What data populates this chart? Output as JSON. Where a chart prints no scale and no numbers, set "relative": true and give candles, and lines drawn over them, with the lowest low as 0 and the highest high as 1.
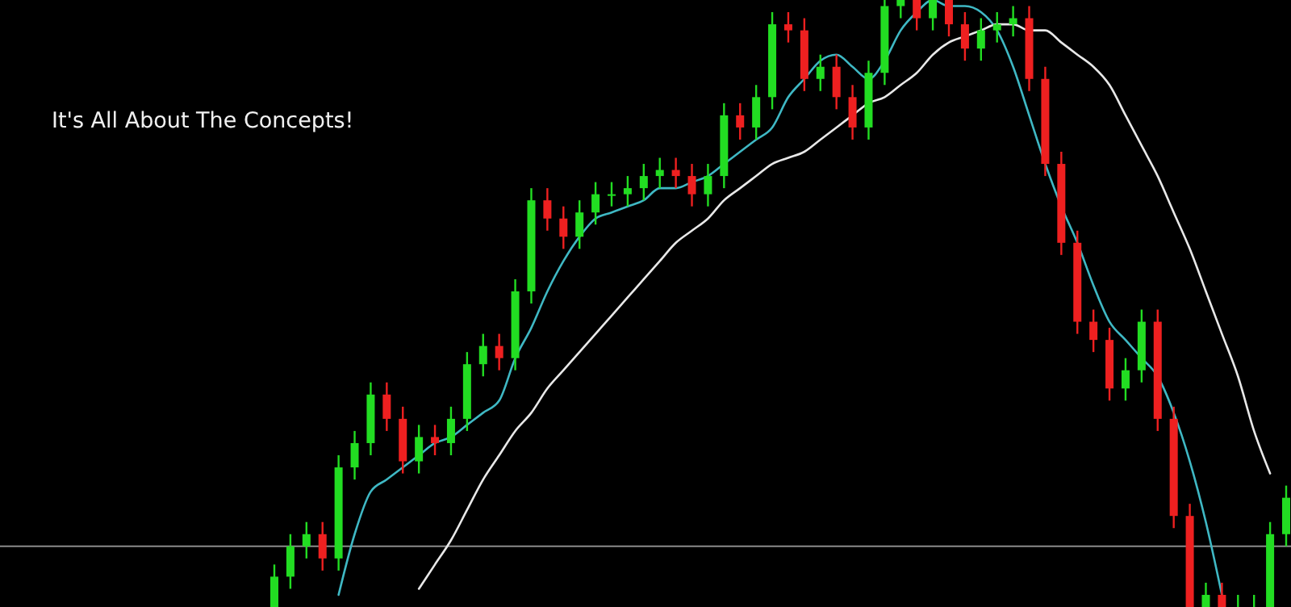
{
  "chart_data": {
    "type": "candlestick",
    "relative": true,
    "annotations": [
      "It's All About The Concepts!"
    ],
    "categories": [
      null,
      null,
      null,
      null,
      null,
      null,
      null,
      null,
      null,
      null,
      null,
      null,
      null,
      null,
      null,
      null,
      null,
      null,
      null,
      null,
      null,
      null,
      null,
      null,
      null,
      null,
      null,
      null,
      null,
      null,
      null,
      null,
      null,
      null,
      null,
      null,
      null,
      null,
      null,
      null,
      null,
      null,
      null,
      null,
      null,
      null,
      null,
      null,
      null,
      null,
      null,
      null,
      null,
      null,
      null,
      null,
      null,
      null,
      null,
      null,
      null,
      null,
      null,
      null
    ],
    "ohlc": [
      [
        0,
        0.07,
        0,
        0.05
      ],
      [
        0.05,
        0.12,
        0.03,
        0.1
      ],
      [
        0.1,
        0.14,
        0.08,
        0.12
      ],
      [
        0.12,
        0.14,
        0.06,
        0.08
      ],
      [
        0.08,
        0.25,
        0.06,
        0.23
      ],
      [
        0.23,
        0.29,
        0.21,
        0.27
      ],
      [
        0.27,
        0.37,
        0.25,
        0.35
      ],
      [
        0.35,
        0.37,
        0.29,
        0.31
      ],
      [
        0.31,
        0.33,
        0.22,
        0.24
      ],
      [
        0.24,
        0.3,
        0.22,
        0.28
      ],
      [
        0.28,
        0.3,
        0.25,
        0.27
      ],
      [
        0.27,
        0.33,
        0.25,
        0.31
      ],
      [
        0.31,
        0.42,
        0.29,
        0.4
      ],
      [
        0.4,
        0.45,
        0.38,
        0.43
      ],
      [
        0.43,
        0.45,
        0.39,
        0.41
      ],
      [
        0.41,
        0.54,
        0.39,
        0.52
      ],
      [
        0.52,
        0.69,
        0.5,
        0.67
      ],
      [
        0.67,
        0.69,
        0.62,
        0.64
      ],
      [
        0.64,
        0.66,
        0.59,
        0.61
      ],
      [
        0.61,
        0.67,
        0.59,
        0.65
      ],
      [
        0.65,
        0.7,
        0.63,
        0.68
      ],
      [
        0.68,
        0.7,
        0.66,
        0.68
      ],
      [
        0.68,
        0.71,
        0.66,
        0.69
      ],
      [
        0.69,
        0.73,
        0.67,
        0.71
      ],
      [
        0.71,
        0.74,
        0.69,
        0.72
      ],
      [
        0.72,
        0.74,
        0.69,
        0.71
      ],
      [
        0.71,
        0.73,
        0.66,
        0.68
      ],
      [
        0.68,
        0.73,
        0.66,
        0.71
      ],
      [
        0.71,
        0.83,
        0.69,
        0.81
      ],
      [
        0.81,
        0.83,
        0.77,
        0.79
      ],
      [
        0.79,
        0.86,
        0.77,
        0.84
      ],
      [
        0.84,
        0.98,
        0.82,
        0.96
      ],
      [
        0.96,
        0.98,
        0.93,
        0.95
      ],
      [
        0.95,
        0.97,
        0.85,
        0.87
      ],
      [
        0.87,
        0.91,
        0.85,
        0.89
      ],
      [
        0.89,
        0.91,
        0.82,
        0.84
      ],
      [
        0.84,
        0.86,
        0.77,
        0.79
      ],
      [
        0.79,
        0.9,
        0.77,
        0.88
      ],
      [
        0.88,
        1,
        0.86,
        0.99
      ],
      [
        0.99,
        1,
        0.97,
        1
      ],
      [
        1,
        1,
        0.95,
        0.97
      ],
      [
        0.97,
        1,
        0.95,
        1
      ],
      [
        1,
        1,
        0.94,
        0.96
      ],
      [
        0.96,
        0.98,
        0.9,
        0.92
      ],
      [
        0.92,
        0.97,
        0.9,
        0.95
      ],
      [
        0.95,
        0.98,
        0.93,
        0.96
      ],
      [
        0.96,
        0.99,
        0.94,
        0.97
      ],
      [
        0.97,
        0.99,
        0.85,
        0.87
      ],
      [
        0.87,
        0.89,
        0.71,
        0.73
      ],
      [
        0.73,
        0.75,
        0.58,
        0.6
      ],
      [
        0.6,
        0.62,
        0.45,
        0.47
      ],
      [
        0.47,
        0.49,
        0.42,
        0.44
      ],
      [
        0.44,
        0.46,
        0.34,
        0.36
      ],
      [
        0.36,
        0.41,
        0.34,
        0.39
      ],
      [
        0.39,
        0.49,
        0.37,
        0.47
      ],
      [
        0.47,
        0.49,
        0.29,
        0.31
      ],
      [
        0.31,
        0.33,
        0.13,
        0.15
      ],
      [
        0.15,
        0.17,
        0,
        0
      ],
      [
        0,
        0.04,
        0,
        0.02
      ],
      [
        0.02,
        0.04,
        0,
        0
      ],
      [
        0,
        0.02,
        0,
        0
      ],
      [
        0,
        0.02,
        0,
        0
      ],
      [
        0,
        0.14,
        0,
        0.12
      ],
      [
        0.12,
        0.2,
        0.1,
        0.18
      ]
    ],
    "colors": [
      "#22dd22",
      "#22dd22",
      "#22dd22",
      "#ee2020",
      "#22dd22",
      "#22dd22",
      "#22dd22",
      "#ee2020",
      "#ee2020",
      "#22dd22",
      "#ee2020",
      "#22dd22",
      "#22dd22",
      "#22dd22",
      "#ee2020",
      "#22dd22",
      "#22dd22",
      "#ee2020",
      "#ee2020",
      "#22dd22",
      "#22dd22",
      "#22dd22",
      "#22dd22",
      "#22dd22",
      "#22dd22",
      "#ee2020",
      "#ee2020",
      "#22dd22",
      "#22dd22",
      "#ee2020",
      "#22dd22",
      "#22dd22",
      "#ee2020",
      "#ee2020",
      "#22dd22",
      "#ee2020",
      "#ee2020",
      "#22dd22",
      "#22dd22",
      "#22dd22",
      "#ee2020",
      "#22dd22",
      "#ee2020",
      "#ee2020",
      "#22dd22",
      "#22dd22",
      "#22dd22",
      "#ee2020",
      "#ee2020",
      "#ee2020",
      "#ee2020",
      "#ee2020",
      "#ee2020",
      "#22dd22",
      "#22dd22",
      "#ee2020",
      "#ee2020",
      "#ee2020",
      "#22dd22",
      "#ee2020",
      "#22dd22",
      "#22dd22",
      "#22dd22",
      "#22dd22"
    ],
    "series": [
      {
        "type": "line",
        "color": "#3fb8c4",
        "values": [
          null,
          null,
          null,
          null,
          0.02,
          0.12,
          0.19,
          0.21,
          0.23,
          0.25,
          0.27,
          0.28,
          0.3,
          0.32,
          0.34,
          0.41,
          0.46,
          0.52,
          0.57,
          0.61,
          0.64,
          0.65,
          0.66,
          0.67,
          0.69,
          0.69,
          0.7,
          0.71,
          0.73,
          0.75,
          0.77,
          0.79,
          0.84,
          0.87,
          0.9,
          0.91,
          0.89,
          0.87,
          0.9,
          0.95,
          0.98,
          1,
          0.99,
          0.99,
          0.98,
          0.95,
          0.89,
          0.81,
          0.73,
          0.66,
          0.6,
          0.53,
          0.47,
          0.44,
          0.41,
          0.38,
          0.32,
          0.24,
          0.14,
          0.02,
          null,
          null,
          null,
          null
        ]
      },
      {
        "type": "line",
        "color": "#e8e8e8",
        "values": [
          null,
          null,
          null,
          null,
          null,
          null,
          null,
          null,
          null,
          0.03,
          0.07,
          0.11,
          0.16,
          0.21,
          0.25,
          0.29,
          0.32,
          0.36,
          0.39,
          0.42,
          0.45,
          0.48,
          0.51,
          0.54,
          0.57,
          0.6,
          0.62,
          0.64,
          0.67,
          0.69,
          0.71,
          0.73,
          0.74,
          0.75,
          0.77,
          0.79,
          0.81,
          0.83,
          0.84,
          0.86,
          0.88,
          0.91,
          0.93,
          0.94,
          0.95,
          0.96,
          0.96,
          0.95,
          0.95,
          0.93,
          0.91,
          0.89,
          0.86,
          0.81,
          0.76,
          0.71,
          0.65,
          0.59,
          0.52,
          0.45,
          0.38,
          0.29,
          0.22,
          null
        ]
      }
    ],
    "ref_lines": [
      {
        "axis": "y",
        "value": 0.1,
        "color": "#8a8a8a"
      }
    ]
  }
}
